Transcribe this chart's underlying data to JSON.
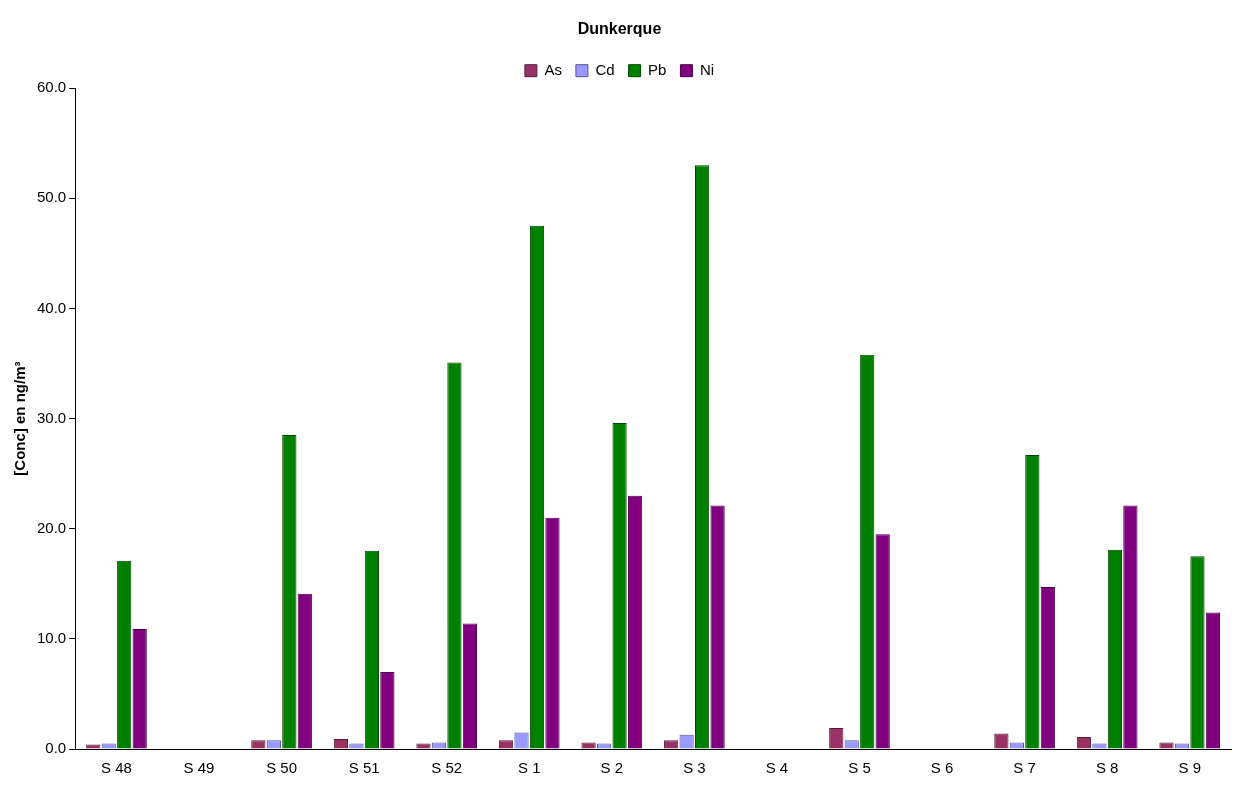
{
  "chart_data": {
    "type": "bar",
    "title": "Dunkerque",
    "ylabel": "[Conc] en ng/m³",
    "categories": [
      "S 48",
      "S 49",
      "S 50",
      "S 51",
      "S 52",
      "S 1",
      "S 2",
      "S 3",
      "S 4",
      "S 5",
      "S 6",
      "S 7",
      "S 8",
      "S 9"
    ],
    "series": [
      {
        "name": "As",
        "color": "#993366",
        "values": [
          0.4,
          null,
          0.8,
          0.9,
          0.5,
          0.8,
          0.6,
          0.8,
          null,
          1.9,
          null,
          1.4,
          1.1,
          0.6
        ]
      },
      {
        "name": "Cd",
        "color": "#9999ff",
        "values": [
          0.5,
          null,
          0.8,
          0.5,
          0.6,
          1.5,
          0.5,
          1.3,
          null,
          0.8,
          null,
          0.6,
          0.5,
          0.5
        ]
      },
      {
        "name": "Pb",
        "color": "#008000",
        "values": [
          17.1,
          null,
          28.5,
          18.0,
          35.1,
          47.5,
          29.6,
          53.0,
          null,
          35.8,
          null,
          26.7,
          18.1,
          17.5
        ]
      },
      {
        "name": "Ni",
        "color": "#800080",
        "values": [
          10.9,
          null,
          14.1,
          7.0,
          11.4,
          21.0,
          23.0,
          22.1,
          null,
          19.5,
          null,
          14.7,
          22.1,
          12.4
        ]
      }
    ],
    "ylim": [
      0,
      60
    ],
    "yticks": [
      {
        "value": 0,
        "label": "0.0"
      },
      {
        "value": 10,
        "label": "10.0"
      },
      {
        "value": 20,
        "label": "20.0"
      },
      {
        "value": 30,
        "label": "30.0"
      },
      {
        "value": 40,
        "label": "40.0"
      },
      {
        "value": 50,
        "label": "50.0"
      },
      {
        "value": 60,
        "label": "60.0"
      }
    ],
    "grid": false,
    "legend": "top"
  }
}
